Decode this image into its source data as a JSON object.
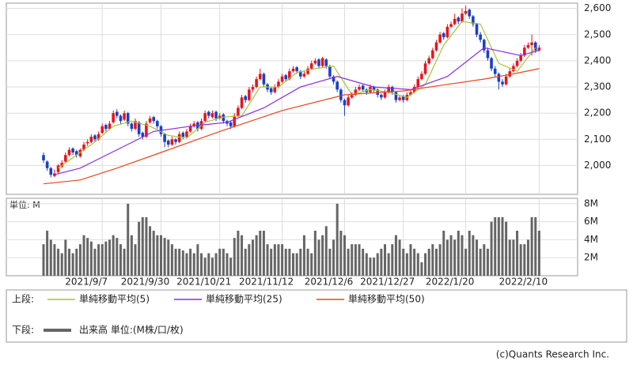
{
  "chart_data": {
    "type": "candlestick",
    "categories": [
      null,
      null,
      null,
      null,
      null,
      null,
      null,
      null,
      null,
      null,
      null,
      null,
      null,
      null,
      null,
      null,
      "2021/9/7",
      null,
      null,
      null,
      null,
      null,
      null,
      null,
      null,
      null,
      null,
      null,
      null,
      null,
      null,
      null,
      "2021/9/30",
      null,
      null,
      null,
      null,
      null,
      null,
      null,
      null,
      null,
      null,
      null,
      null,
      null,
      null,
      null,
      "2021/10/21",
      null,
      null,
      null,
      null,
      null,
      null,
      null,
      null,
      null,
      null,
      null,
      null,
      null,
      null,
      null,
      null,
      "2021/11/12",
      null,
      null,
      null,
      null,
      null,
      null,
      null,
      null,
      null,
      null,
      null,
      null,
      null,
      null,
      null,
      null,
      "2021/12/6",
      null,
      null,
      null,
      null,
      null,
      null,
      null,
      null,
      null,
      null,
      null,
      null,
      null,
      null,
      null,
      "2021/12/27",
      null,
      null,
      null,
      null,
      null,
      null,
      null,
      null,
      null,
      null,
      null,
      null,
      null,
      null,
      null,
      null,
      "2022/1/20",
      null,
      null,
      null,
      null,
      null,
      null,
      null,
      null,
      null,
      null,
      null,
      null,
      null,
      null,
      null,
      null,
      null,
      null,
      null,
      "2022/2/10"
    ],
    "ohlc": [
      [
        2040,
        2050,
        2010,
        2020
      ],
      [
        2015,
        2020,
        1980,
        1990
      ],
      [
        1990,
        1995,
        1955,
        1965
      ],
      [
        1960,
        1985,
        1955,
        1970
      ],
      [
        1975,
        2005,
        1970,
        2000
      ],
      [
        1995,
        2020,
        1990,
        2010
      ],
      [
        2015,
        2050,
        2010,
        2040
      ],
      [
        2040,
        2070,
        2035,
        2060
      ],
      [
        2065,
        2070,
        2040,
        2050
      ],
      [
        2055,
        2060,
        2030,
        2040
      ],
      [
        2035,
        2065,
        2030,
        2060
      ],
      [
        2060,
        2090,
        2055,
        2080
      ],
      [
        2085,
        2100,
        2075,
        2090
      ],
      [
        2090,
        2120,
        2085,
        2110
      ],
      [
        2115,
        2120,
        2090,
        2100
      ],
      [
        2100,
        2130,
        2095,
        2120
      ],
      [
        2125,
        2160,
        2120,
        2150
      ],
      [
        2155,
        2160,
        2130,
        2140
      ],
      [
        2140,
        2170,
        2135,
        2160
      ],
      [
        2165,
        2210,
        2160,
        2200
      ],
      [
        2205,
        2215,
        2180,
        2190
      ],
      [
        2190,
        2195,
        2160,
        2170
      ],
      [
        2175,
        2210,
        2170,
        2200
      ],
      [
        2200,
        2205,
        2150,
        2160
      ],
      [
        2160,
        2165,
        2130,
        2140
      ],
      [
        2140,
        2180,
        2135,
        2170
      ],
      [
        2165,
        2170,
        2110,
        2120
      ],
      [
        2125,
        2130,
        2100,
        2110
      ],
      [
        2110,
        2170,
        2105,
        2160
      ],
      [
        2165,
        2190,
        2160,
        2180
      ],
      [
        2185,
        2190,
        2160,
        2170
      ],
      [
        2170,
        2175,
        2140,
        2150
      ],
      [
        2150,
        2155,
        2110,
        2120
      ],
      [
        2120,
        2125,
        2070,
        2090
      ],
      [
        2095,
        2100,
        2070,
        2080
      ],
      [
        2080,
        2110,
        2075,
        2100
      ],
      [
        2100,
        2105,
        2080,
        2090
      ],
      [
        2090,
        2130,
        2085,
        2120
      ],
      [
        2125,
        2130,
        2100,
        2110
      ],
      [
        2110,
        2140,
        2105,
        2130
      ],
      [
        2130,
        2160,
        2125,
        2150
      ],
      [
        2150,
        2170,
        2145,
        2160
      ],
      [
        2165,
        2170,
        2130,
        2140
      ],
      [
        2140,
        2180,
        2135,
        2170
      ],
      [
        2170,
        2210,
        2165,
        2200
      ],
      [
        2205,
        2210,
        2180,
        2190
      ],
      [
        2185,
        2210,
        2180,
        2200
      ],
      [
        2205,
        2210,
        2170,
        2180
      ],
      [
        2180,
        2200,
        2175,
        2190
      ],
      [
        2195,
        2200,
        2160,
        2170
      ],
      [
        2170,
        2175,
        2150,
        2160
      ],
      [
        2165,
        2170,
        2140,
        2150
      ],
      [
        2150,
        2200,
        2145,
        2190
      ],
      [
        2190,
        2230,
        2185,
        2220
      ],
      [
        2220,
        2270,
        2215,
        2260
      ],
      [
        2265,
        2270,
        2240,
        2250
      ],
      [
        2250,
        2300,
        2245,
        2290
      ],
      [
        2290,
        2310,
        2280,
        2300
      ],
      [
        2300,
        2340,
        2295,
        2330
      ],
      [
        2330,
        2370,
        2325,
        2350
      ],
      [
        2350,
        2355,
        2300,
        2310
      ],
      [
        2310,
        2315,
        2280,
        2290
      ],
      [
        2295,
        2300,
        2270,
        2280
      ],
      [
        2280,
        2310,
        2275,
        2300
      ],
      [
        2300,
        2330,
        2295,
        2320
      ],
      [
        2320,
        2350,
        2315,
        2340
      ],
      [
        2345,
        2350,
        2320,
        2330
      ],
      [
        2330,
        2370,
        2325,
        2360
      ],
      [
        2360,
        2380,
        2355,
        2370
      ],
      [
        2375,
        2380,
        2350,
        2360
      ],
      [
        2360,
        2365,
        2330,
        2340
      ],
      [
        2340,
        2360,
        2335,
        2350
      ],
      [
        2350,
        2380,
        2345,
        2370
      ],
      [
        2370,
        2400,
        2365,
        2390
      ],
      [
        2390,
        2410,
        2385,
        2400
      ],
      [
        2405,
        2410,
        2370,
        2380
      ],
      [
        2380,
        2415,
        2375,
        2410
      ],
      [
        2405,
        2410,
        2370,
        2380
      ],
      [
        2380,
        2385,
        2330,
        2340
      ],
      [
        2340,
        2345,
        2310,
        2320
      ],
      [
        2320,
        2325,
        2280,
        2290
      ],
      [
        2290,
        2295,
        2240,
        2250
      ],
      [
        2250,
        2255,
        2190,
        2230
      ],
      [
        2230,
        2270,
        2225,
        2260
      ],
      [
        2260,
        2280,
        2255,
        2270
      ],
      [
        2270,
        2300,
        2265,
        2290
      ],
      [
        2290,
        2310,
        2285,
        2300
      ],
      [
        2305,
        2310,
        2280,
        2290
      ],
      [
        2290,
        2295,
        2270,
        2280
      ],
      [
        2280,
        2310,
        2275,
        2300
      ],
      [
        2300,
        2305,
        2280,
        2290
      ],
      [
        2290,
        2295,
        2260,
        2270
      ],
      [
        2270,
        2275,
        2250,
        2260
      ],
      [
        2260,
        2290,
        2255,
        2280
      ],
      [
        2280,
        2310,
        2275,
        2300
      ],
      [
        2300,
        2305,
        2270,
        2280
      ],
      [
        2280,
        2285,
        2240,
        2250
      ],
      [
        2250,
        2270,
        2245,
        2260
      ],
      [
        2265,
        2270,
        2240,
        2250
      ],
      [
        2250,
        2280,
        2245,
        2270
      ],
      [
        2270,
        2290,
        2265,
        2280
      ],
      [
        2280,
        2310,
        2275,
        2300
      ],
      [
        2300,
        2340,
        2295,
        2330
      ],
      [
        2330,
        2360,
        2325,
        2350
      ],
      [
        2350,
        2400,
        2345,
        2390
      ],
      [
        2390,
        2420,
        2385,
        2410
      ],
      [
        2410,
        2450,
        2405,
        2440
      ],
      [
        2440,
        2480,
        2435,
        2470
      ],
      [
        2470,
        2510,
        2465,
        2500
      ],
      [
        2505,
        2510,
        2480,
        2490
      ],
      [
        2490,
        2540,
        2485,
        2530
      ],
      [
        2530,
        2550,
        2525,
        2540
      ],
      [
        2540,
        2580,
        2535,
        2560
      ],
      [
        2565,
        2570,
        2540,
        2550
      ],
      [
        2550,
        2600,
        2545,
        2580
      ],
      [
        2580,
        2610,
        2575,
        2590
      ],
      [
        2595,
        2600,
        2560,
        2570
      ],
      [
        2570,
        2575,
        2530,
        2540
      ],
      [
        2540,
        2545,
        2490,
        2500
      ],
      [
        2500,
        2510,
        2470,
        2480
      ],
      [
        2480,
        2485,
        2430,
        2440
      ],
      [
        2440,
        2450,
        2400,
        2410
      ],
      [
        2410,
        2415,
        2360,
        2370
      ],
      [
        2370,
        2380,
        2340,
        2350
      ],
      [
        2350,
        2355,
        2290,
        2320
      ],
      [
        2320,
        2330,
        2300,
        2310
      ],
      [
        2310,
        2350,
        2305,
        2340
      ],
      [
        2340,
        2370,
        2335,
        2360
      ],
      [
        2360,
        2390,
        2355,
        2380
      ],
      [
        2380,
        2410,
        2375,
        2400
      ],
      [
        2400,
        2430,
        2395,
        2420
      ],
      [
        2420,
        2460,
        2415,
        2450
      ],
      [
        2450,
        2470,
        2445,
        2460
      ],
      [
        2460,
        2500,
        2420,
        2470
      ],
      [
        2470,
        2475,
        2430,
        2440
      ],
      [
        2440,
        2460,
        2435,
        2450
      ]
    ],
    "up_color": "#e8141c",
    "down_color": "#1c3fc4",
    "ylim": [
      1890,
      2620
    ],
    "yticks": [
      {
        "value": 2000,
        "label": "2,000"
      },
      {
        "value": 2100,
        "label": "2,100"
      },
      {
        "value": 2200,
        "label": "2,200"
      },
      {
        "value": 2300,
        "label": "2,300"
      },
      {
        "value": 2400,
        "label": "2,400"
      },
      {
        "value": 2500,
        "label": "2,500"
      },
      {
        "value": 2600,
        "label": "2,600"
      }
    ],
    "grid": true,
    "series": [
      {
        "name": "単純移動平均(5)",
        "color": "#a4c639",
        "x": [
          4,
          9,
          14,
          19,
          24,
          29,
          34,
          39,
          44,
          49,
          54,
          59,
          64,
          69,
          74,
          79,
          84,
          89,
          94,
          99,
          104,
          109,
          114,
          119,
          124,
          129,
          134
        ],
        "values": [
          1990,
          2040,
          2090,
          2150,
          2170,
          2150,
          2115,
          2105,
          2165,
          2185,
          2190,
          2300,
          2300,
          2355,
          2370,
          2380,
          2270,
          2290,
          2280,
          2260,
          2310,
          2460,
          2550,
          2540,
          2390,
          2360,
          2450
        ]
      },
      {
        "name": "単純移動平均(25)",
        "color": "#8a2be2",
        "x": [
          3,
          10,
          20,
          30,
          40,
          50,
          60,
          70,
          80,
          90,
          100,
          110,
          120,
          130,
          135
        ],
        "values": [
          1965,
          1990,
          2060,
          2130,
          2150,
          2165,
          2220,
          2300,
          2340,
          2300,
          2290,
          2340,
          2450,
          2420,
          2440
        ]
      },
      {
        "name": "単純移動平均(50)",
        "color": "#e8461c",
        "x": [
          0,
          10,
          20,
          32,
          48,
          65,
          82,
          98,
          110,
          120,
          128,
          135
        ],
        "values": [
          1930,
          1945,
          1990,
          2050,
          2130,
          2210,
          2270,
          2285,
          2310,
          2330,
          2350,
          2370
        ]
      }
    ],
    "volume": {
      "name": "出来高 単位:(M株/口/枚)",
      "color": "#666666",
      "unit_label": "単位: M",
      "values": [
        3.5,
        5,
        4,
        3.5,
        3,
        2.5,
        4,
        3,
        2.5,
        3,
        3.5,
        4.5,
        4.2,
        3.8,
        3,
        3.5,
        3.5,
        3.8,
        4,
        4.5,
        4.2,
        3.5,
        3,
        8,
        4.5,
        3.5,
        6,
        6.5,
        6.5,
        5.5,
        5,
        4.5,
        4.5,
        4.2,
        4,
        3.5,
        3,
        3,
        2.8,
        2.5,
        3,
        2.5,
        3.5,
        2.5,
        2,
        2.5,
        2,
        2.5,
        3,
        3,
        2.5,
        2,
        4.2,
        5,
        4.5,
        3,
        3.5,
        4,
        4.5,
        5,
        5,
        3.5,
        3,
        3.5,
        3.5,
        3.5,
        3,
        3,
        2.5,
        2.5,
        3,
        4.5,
        3,
        2.5,
        5,
        4,
        4.5,
        5.5,
        3,
        4,
        8,
        5,
        4.5,
        3,
        3.5,
        3.5,
        3.5,
        3,
        2.5,
        2,
        2,
        2.5,
        3,
        3.5,
        2.5,
        3.5,
        4.5,
        4,
        3,
        2.5,
        3.5,
        3,
        2.5,
        1.5,
        2.5,
        3,
        3.5,
        3,
        3.5,
        5,
        4,
        4.5,
        4,
        5,
        4.5,
        3,
        5,
        4.5,
        4,
        3,
        3.5,
        3,
        6,
        6.5,
        6.5,
        6.5,
        6,
        4,
        4,
        5,
        3.5,
        3.5,
        4,
        6.5,
        6.5,
        5
      ],
      "ylim": [
        0,
        8.6
      ],
      "yticks": [
        {
          "value": 2,
          "label": "2M"
        },
        {
          "value": 4,
          "label": "4M"
        },
        {
          "value": 6,
          "label": "6M"
        },
        {
          "value": 8,
          "label": "8M"
        }
      ]
    },
    "legend": {
      "upper_label": "上段:",
      "lower_label": "下段:"
    },
    "credit": "(c)Quants Research Inc."
  }
}
